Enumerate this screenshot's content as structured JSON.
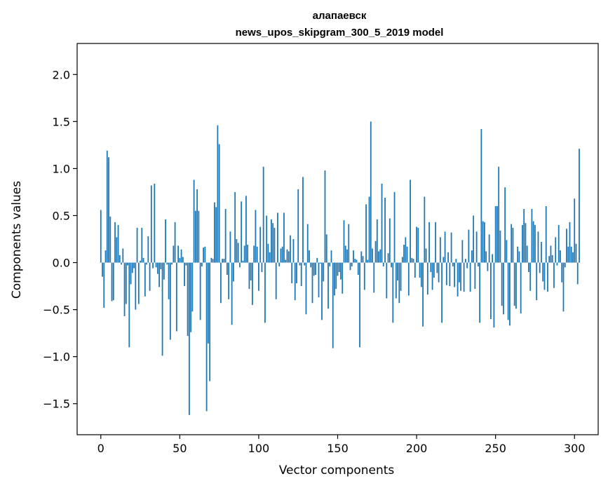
{
  "chart_data": {
    "type": "bar",
    "title": "алапаевск",
    "subtitle": "news_upos_skipgram_300_5_2019 model",
    "xlabel": "Vector components",
    "ylabel": "Components values",
    "xlim": [
      -15,
      315
    ],
    "ylim": [
      -1.83,
      2.33
    ],
    "x_ticks": [
      0,
      50,
      100,
      150,
      200,
      250,
      300
    ],
    "y_ticks": [
      -1.5,
      -1.0,
      -0.5,
      0.0,
      0.5,
      1.0,
      1.5,
      2.0
    ],
    "y_tick_labels": [
      "−1.5",
      "−1.0",
      "−0.5",
      "0.0",
      "0.5",
      "1.0",
      "1.5",
      "2.0"
    ],
    "grid": false,
    "bar_color": "#1f77b4",
    "values": [
      0.56,
      -0.15,
      -0.48,
      0.13,
      1.19,
      1.12,
      0.49,
      -0.41,
      -0.4,
      0.43,
      0.27,
      0.4,
      0.08,
      -0.02,
      0.15,
      -0.57,
      -0.44,
      -0.03,
      -0.9,
      -0.23,
      -0.11,
      -0.06,
      -0.5,
      0.37,
      -0.44,
      0.02,
      0.37,
      0.05,
      -0.36,
      -0.02,
      0.28,
      -0.3,
      0.82,
      -0.06,
      0.84,
      -0.05,
      -0.12,
      -0.26,
      -0.07,
      -0.99,
      -0.18,
      0.46,
      -0.02,
      -0.39,
      -0.82,
      -0.02,
      0.18,
      0.43,
      -0.73,
      0.18,
      0.05,
      0.14,
      0.06,
      -0.25,
      -0.03,
      -0.78,
      -1.62,
      -0.74,
      -0.52,
      0.88,
      0.55,
      0.78,
      0.55,
      -0.61,
      -0.04,
      0.16,
      0.17,
      -1.58,
      -0.86,
      -1.26,
      0.05,
      0.04,
      0.64,
      0.59,
      1.46,
      1.26,
      -0.43,
      0.04,
      0.04,
      0.57,
      -0.13,
      -0.39,
      0.33,
      -0.66,
      -0.2,
      0.75,
      0.25,
      0.21,
      -0.05,
      0.65,
      0.02,
      0.18,
      0.71,
      0.19,
      -0.28,
      -0.19,
      -0.45,
      0.18,
      0.56,
      0.17,
      -0.3,
      0.38,
      -0.1,
      1.02,
      -0.64,
      0.5,
      0.2,
      0.11,
      0.46,
      0.42,
      0.37,
      -0.39,
      0.53,
      -0.04,
      0.15,
      0.17,
      0.53,
      0.03,
      0.14,
      0.12,
      0.29,
      -0.22,
      0.25,
      -0.4,
      -0.22,
      0.78,
      -0.03,
      -0.25,
      0.91,
      -0.03,
      -0.55,
      0.41,
      0.13,
      -0.05,
      -0.43,
      -0.14,
      -0.13,
      0.05,
      -0.37,
      -0.01,
      -0.61,
      -0.2,
      0.98,
      0.3,
      -0.49,
      -0.04,
      0.13,
      -0.91,
      -0.35,
      -0.28,
      -0.14,
      -0.1,
      -0.18,
      -0.33,
      0.45,
      0.18,
      0.14,
      0.41,
      -0.08,
      -0.04,
      0.13,
      0.04,
      0.03,
      -0.13,
      -0.9,
      0.12,
      0.07,
      -0.29,
      0.62,
      0.03,
      0.7,
      1.5,
      0.15,
      -0.32,
      0.23,
      0.46,
      0.12,
      0.14,
      0.84,
      -0.04,
      0.69,
      -0.38,
      0.1,
      0.47,
      -0.05,
      -0.64,
      0.75,
      -0.38,
      -0.19,
      -0.43,
      -0.3,
      0.06,
      0.19,
      0.27,
      0.17,
      -0.35,
      0.88,
      0.05,
      0.04,
      -0.16,
      0.38,
      0.37,
      -0.16,
      -0.26,
      -0.68,
      0.7,
      0.15,
      -0.34,
      0.43,
      -0.1,
      -0.29,
      -0.16,
      0.43,
      -0.11,
      -0.21,
      0.27,
      -0.64,
      0.06,
      0.33,
      -0.24,
      0.11,
      -0.25,
      0.32,
      -0.04,
      -0.26,
      0.04,
      -0.36,
      -0.21,
      -0.3,
      0.24,
      -0.31,
      0.04,
      -0.06,
      0.35,
      -0.31,
      0.13,
      0.5,
      -0.28,
      0.33,
      -0.04,
      -0.64,
      1.42,
      0.44,
      0.43,
      0.12,
      -0.09,
      0.3,
      -0.6,
      0.09,
      -0.69,
      0.6,
      0.6,
      1.02,
      0.34,
      -0.46,
      -0.55,
      0.8,
      0.24,
      -0.61,
      -0.67,
      0.41,
      0.37,
      -0.46,
      -0.49,
      0.17,
      0.12,
      -0.54,
      0.4,
      0.57,
      0.42,
      0.18,
      -0.1,
      -0.3,
      0.57,
      0.44,
      0.4,
      -0.4,
      0.33,
      -0.11,
      0.22,
      -0.2,
      -0.29,
      0.6,
      -0.31,
      0.07,
      0.18,
      0.08,
      -0.27,
      0.27,
      -0.03,
      0.4,
      0.13,
      -0.21,
      -0.52,
      -0.05,
      0.36,
      0.17,
      0.43,
      0.17,
      0.11,
      0.68,
      0.2,
      -0.23,
      1.21
    ]
  }
}
